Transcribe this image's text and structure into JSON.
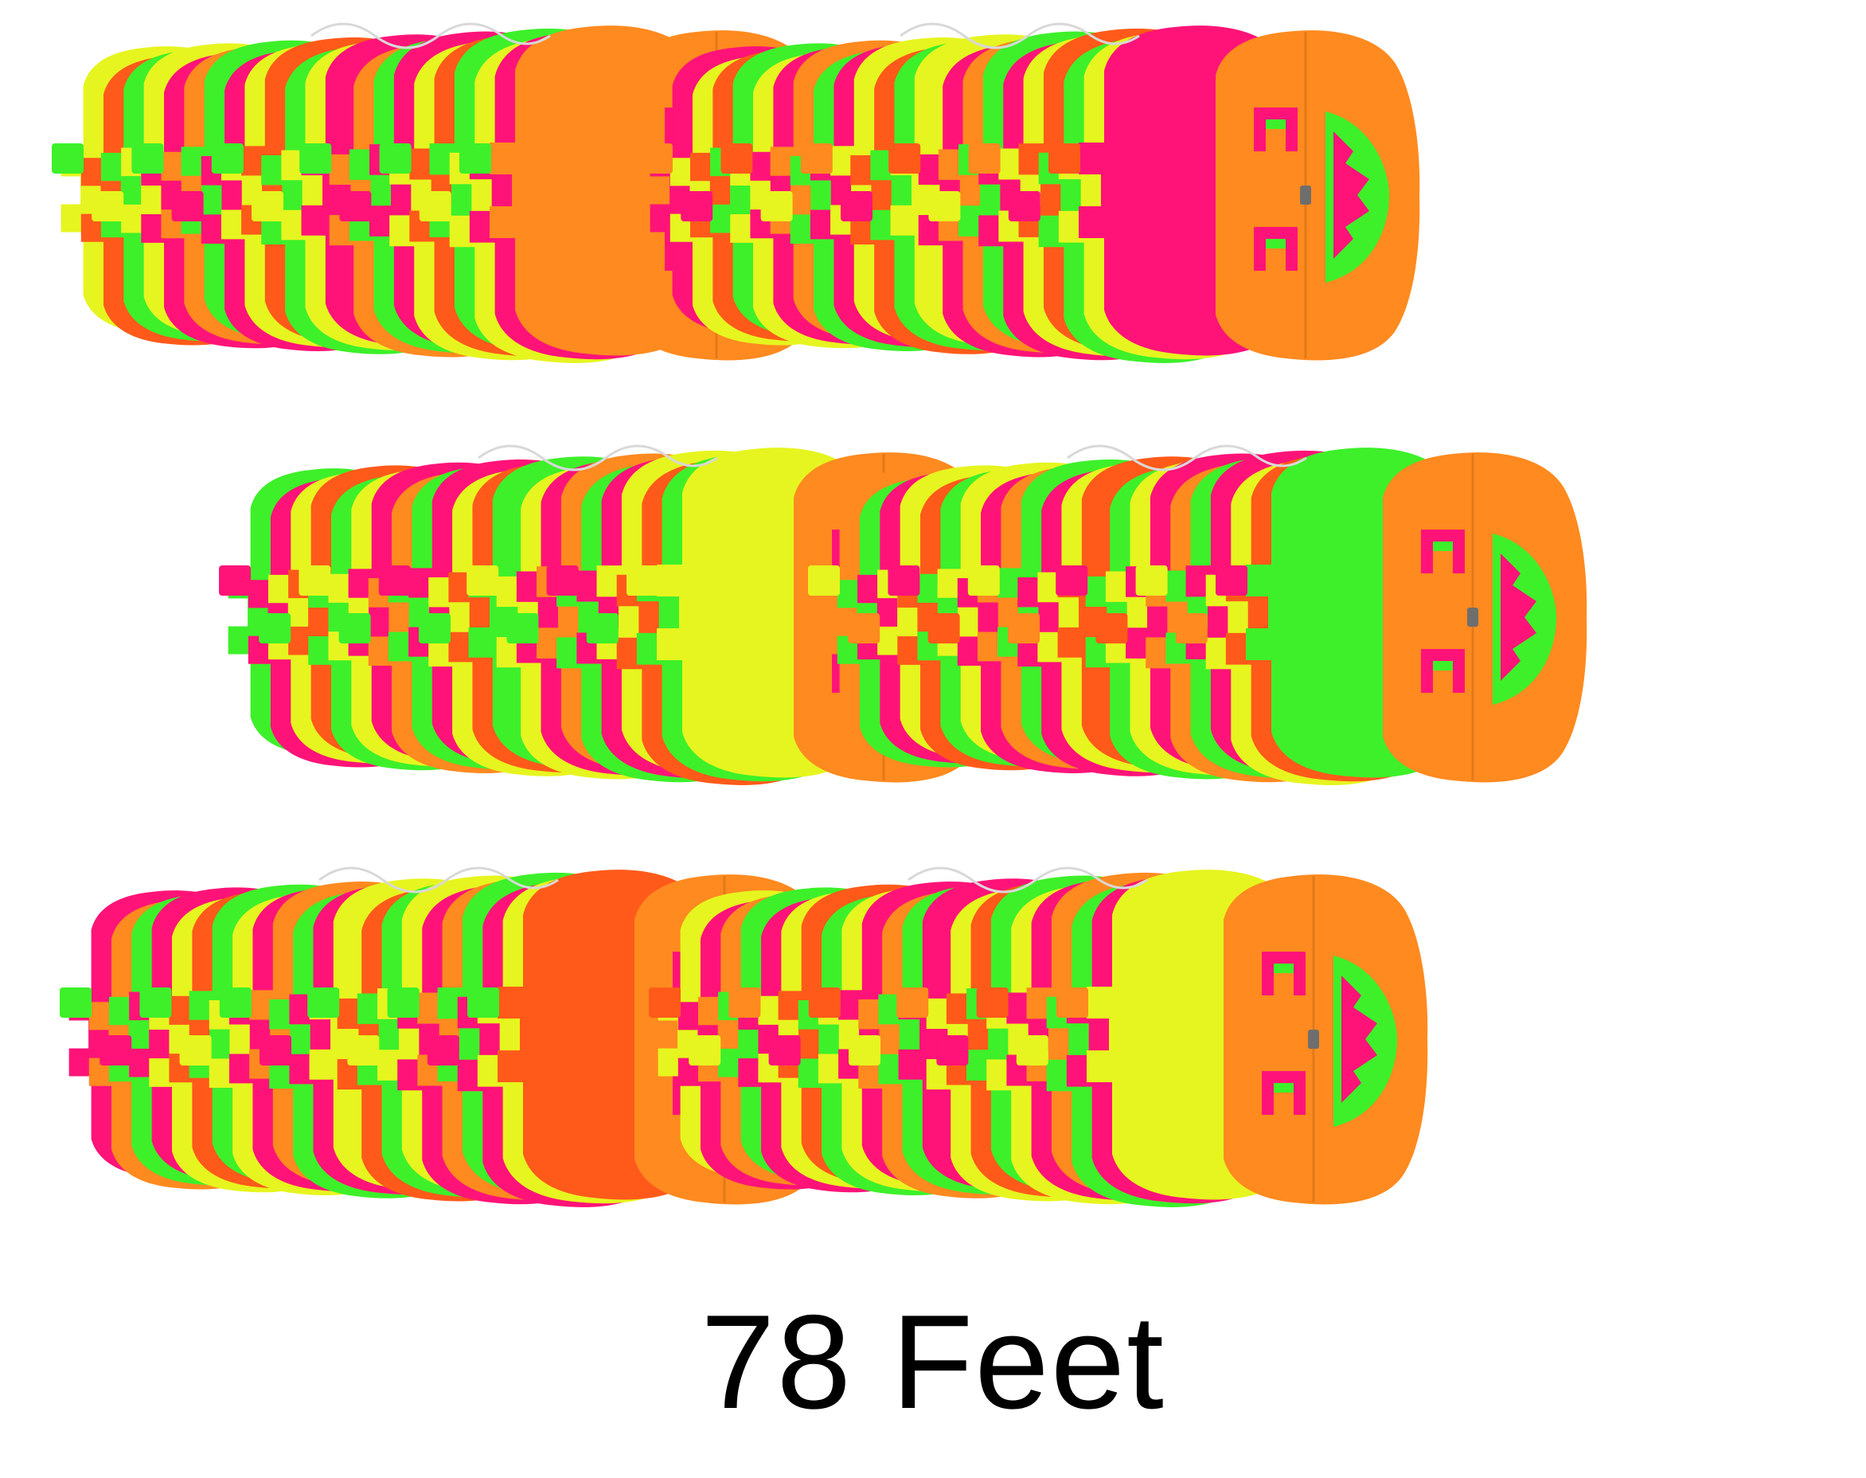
{
  "caption": "78 Feet",
  "palette": {
    "orange": "#FF8A1F",
    "yellow": "#E6F51F",
    "green": "#3DF02A",
    "pink": "#FF1378",
    "red_orange": "#FF5A1A",
    "string": "#D8D8D8",
    "clip": "#6E6E6E"
  },
  "garlands": [
    {
      "name": "garland-stack-1"
    },
    {
      "name": "garland-stack-2"
    },
    {
      "name": "garland-stack-3"
    },
    {
      "name": "garland-stack-4"
    },
    {
      "name": "garland-stack-5"
    },
    {
      "name": "garland-stack-6"
    }
  ]
}
